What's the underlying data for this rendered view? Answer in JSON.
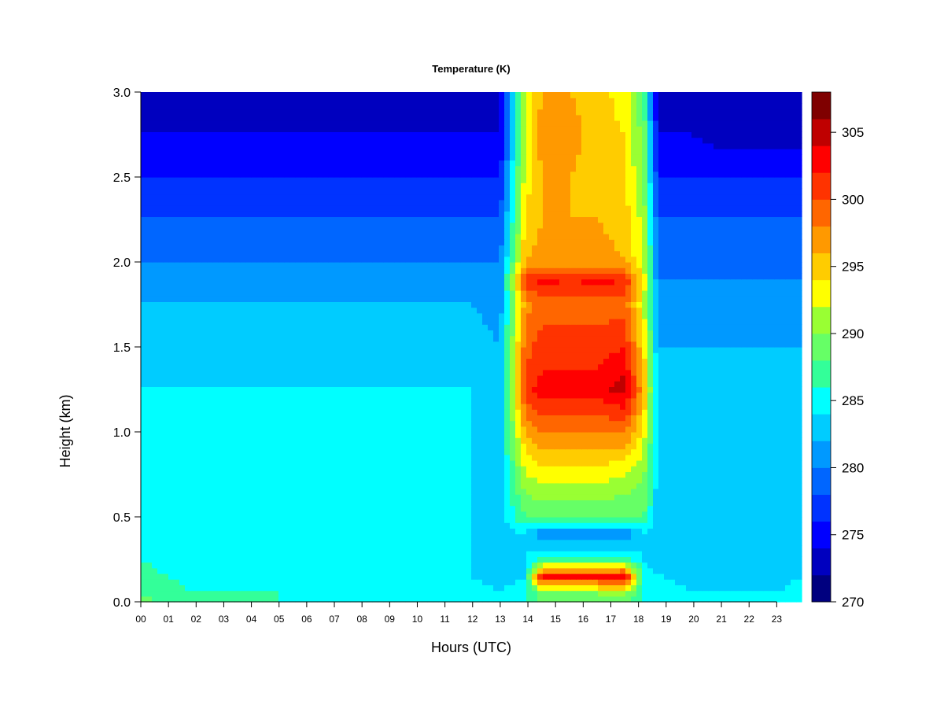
{
  "chart_data": {
    "type": "heatmap",
    "title": "Temperature (K)",
    "xlabel": "Hours (UTC)",
    "ylabel": "Height (km)",
    "x_unit": "hour (UTC)",
    "y_unit": "km",
    "xlim": [
      0,
      23.9
    ],
    "ylim": [
      0,
      3.0
    ],
    "x_ticks": [
      "00",
      "01",
      "02",
      "03",
      "04",
      "05",
      "06",
      "07",
      "08",
      "09",
      "10",
      "11",
      "12",
      "13",
      "14",
      "15",
      "16",
      "17",
      "18",
      "19",
      "20",
      "21",
      "22",
      "23"
    ],
    "y_ticks": [
      "0.0",
      "0.5",
      "1.0",
      "1.5",
      "2.0",
      "2.5",
      "3.0"
    ],
    "colorbar": {
      "min": 270,
      "max": 308,
      "step": 2,
      "tick_labels": [
        "270",
        "275",
        "280",
        "285",
        "290",
        "295",
        "300",
        "305"
      ],
      "colors": [
        "#00007f",
        "#0000bf",
        "#0000ff",
        "#0033ff",
        "#0066ff",
        "#0099ff",
        "#00ccff",
        "#00ffff",
        "#33ff99",
        "#66ff66",
        "#99ff33",
        "#ffff00",
        "#ffcc00",
        "#ff9900",
        "#ff6600",
        "#ff3300",
        "#ff0000",
        "#bf0000",
        "#7f0000"
      ]
    },
    "z_hours": [
      0,
      1,
      2,
      3,
      4,
      5,
      6,
      7,
      8,
      9,
      10,
      11,
      12,
      13,
      13.9,
      14.5,
      15.5,
      16.5,
      17.5,
      18.2,
      18.7,
      19,
      20,
      21,
      22,
      23,
      23.9
    ],
    "z_heights_km": [
      0,
      0.05,
      0.15,
      0.25,
      0.4,
      0.5,
      0.75,
      1.0,
      1.25,
      1.5,
      1.75,
      1.9,
      2.0,
      2.25,
      2.5,
      2.75,
      3.0
    ],
    "z_values_K": [
      [
        289,
        287,
        286,
        286,
        286,
        286,
        285,
        285,
        285,
        285,
        285,
        285,
        285,
        284,
        286,
        289,
        289,
        289,
        289,
        286,
        285,
        285,
        284,
        284,
        284,
        284,
        285
      ],
      [
        288,
        287,
        286,
        286,
        286,
        286,
        285,
        285,
        285,
        285,
        285,
        285,
        285,
        284,
        286,
        289,
        289,
        290,
        290,
        286,
        285,
        285,
        284,
        284,
        284,
        284,
        285
      ],
      [
        287,
        286,
        285,
        285,
        285,
        285,
        285,
        285,
        285,
        285,
        284,
        284,
        284,
        283,
        284,
        302,
        302,
        302,
        304,
        285,
        284,
        284,
        283,
        283,
        283,
        283,
        284
      ],
      [
        286,
        285,
        285,
        285,
        285,
        285,
        285,
        285,
        285,
        285,
        284,
        284,
        284,
        283,
        284,
        287,
        287,
        287,
        287,
        284,
        283,
        283,
        283,
        283,
        283,
        283,
        283
      ],
      [
        285,
        285,
        285,
        285,
        285,
        285,
        285,
        285,
        285,
        285,
        284,
        284,
        284,
        283,
        284,
        280,
        280,
        280,
        280,
        284,
        283,
        283,
        283,
        283,
        283,
        283,
        283
      ],
      [
        285,
        285,
        285,
        285,
        285,
        285,
        285,
        285,
        285,
        285,
        284,
        284,
        284,
        283,
        288,
        288,
        288,
        288,
        288,
        288,
        283,
        282,
        282,
        282,
        282,
        282,
        282
      ],
      [
        285,
        285,
        285,
        285,
        285,
        285,
        285,
        285,
        285,
        285,
        284,
        284,
        284,
        283,
        292,
        293,
        293,
        293,
        292,
        290,
        283,
        282,
        282,
        282,
        282,
        282,
        282
      ],
      [
        284,
        284,
        284,
        284,
        284,
        284,
        284,
        284,
        284,
        284,
        284,
        284,
        284,
        283,
        296,
        298,
        298,
        298,
        298,
        293,
        283,
        282,
        282,
        282,
        282,
        282,
        282
      ],
      [
        284,
        284,
        284,
        284,
        284,
        284,
        284,
        284,
        284,
        284,
        284,
        284,
        284,
        283,
        301,
        303,
        303,
        303,
        305,
        296,
        283,
        282,
        282,
        282,
        282,
        282,
        282
      ],
      [
        283,
        283,
        283,
        283,
        283,
        283,
        283,
        283,
        283,
        283,
        283,
        283,
        283,
        282,
        299,
        301,
        301,
        301,
        302,
        294,
        282,
        282,
        282,
        282,
        282,
        282,
        282
      ],
      [
        282,
        282,
        282,
        282,
        282,
        282,
        282,
        282,
        282,
        282,
        282,
        282,
        282,
        281,
        297,
        299,
        299,
        299,
        299,
        292,
        281,
        281,
        281,
        281,
        281,
        281,
        281
      ],
      [
        281,
        281,
        281,
        281,
        281,
        281,
        281,
        281,
        281,
        281,
        281,
        281,
        281,
        281,
        301,
        303,
        302,
        303,
        302,
        293,
        280,
        280,
        280,
        280,
        280,
        280,
        280
      ],
      [
        280,
        280,
        280,
        280,
        280,
        280,
        280,
        280,
        280,
        280,
        280,
        280,
        280,
        280,
        296,
        297,
        297,
        297,
        296,
        292,
        280,
        279,
        279,
        279,
        279,
        279,
        279
      ],
      [
        278,
        278,
        278,
        278,
        278,
        278,
        278,
        278,
        278,
        278,
        278,
        278,
        278,
        278,
        294,
        296,
        296,
        296,
        295,
        291,
        278,
        278,
        278,
        278,
        278,
        278,
        278
      ],
      [
        276,
        276,
        276,
        276,
        276,
        276,
        276,
        276,
        276,
        276,
        276,
        276,
        276,
        276,
        293,
        296,
        296,
        295,
        294,
        290,
        276,
        276,
        276,
        276,
        276,
        276,
        276
      ],
      [
        274,
        274,
        274,
        274,
        274,
        274,
        274,
        274,
        274,
        274,
        274,
        274,
        274,
        274,
        293,
        297,
        297,
        295,
        294,
        289,
        274,
        274,
        274,
        273,
        273,
        273,
        273
      ],
      [
        273,
        273,
        273,
        273,
        273,
        273,
        273,
        273,
        273,
        273,
        273,
        273,
        273,
        273,
        293,
        296,
        296,
        295,
        293,
        288,
        273,
        273,
        273,
        272,
        272,
        272,
        272
      ]
    ]
  }
}
